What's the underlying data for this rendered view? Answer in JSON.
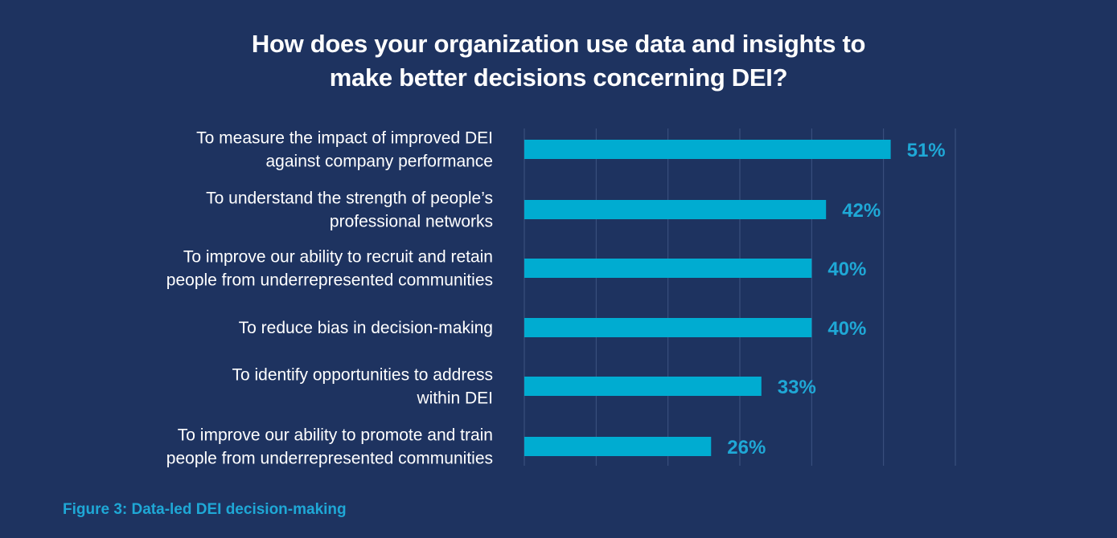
{
  "chart_data": {
    "type": "bar",
    "orientation": "horizontal",
    "title_lines": [
      "How does your organization use data and insights to",
      "make better decisions concerning DEI?"
    ],
    "categories": [
      [
        "To measure the impact of improved DEI",
        "against company performance"
      ],
      [
        "To understand the strength of people’s",
        "professional networks"
      ],
      [
        "To improve our ability to recruit and retain",
        "people from underrepresented communities"
      ],
      [
        "To reduce bias in decision-making"
      ],
      [
        "To identify opportunities to address",
        "within DEI"
      ],
      [
        "To improve our ability to promote and train",
        "people from underrepresented communities"
      ]
    ],
    "values": [
      51,
      42,
      40,
      40,
      33,
      26
    ],
    "value_labels": [
      "51%",
      "42%",
      "40%",
      "40%",
      "33%",
      "26%"
    ],
    "xlim": [
      0,
      60
    ],
    "grid": true,
    "colors": {
      "bar": "#00acd1",
      "value_label": "#1fa8d6",
      "grid": "#3d5482",
      "background": "#1e3360"
    }
  },
  "caption": "Figure 3: Data-led DEI decision-making"
}
